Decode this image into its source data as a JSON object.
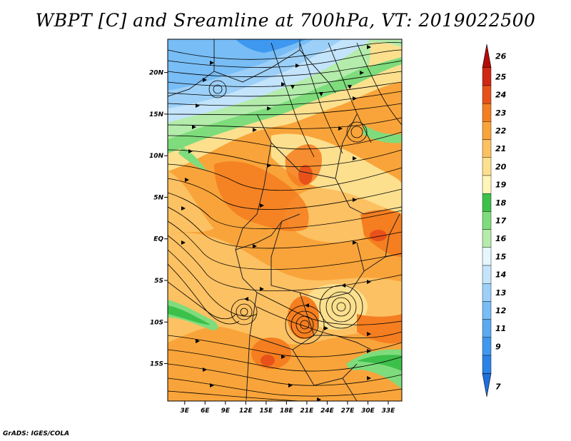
{
  "title": "WBPT [C] and Sreamline at 700hPa, VT: 2019022500",
  "credit": "GrADS: IGES/COLA",
  "map": {
    "variable": "Wet-bulb potential temperature",
    "units": "C",
    "level": "700hPa",
    "valid_time": "2019022500",
    "lat_labels": [
      "20N",
      "15N",
      "10N",
      "5N",
      "EQ",
      "5S",
      "10S",
      "15S"
    ],
    "lat_values": [
      20,
      15,
      10,
      5,
      0,
      -5,
      -10,
      -15
    ],
    "lon_labels": [
      "3E",
      "6E",
      "9E",
      "12E",
      "15E",
      "18E",
      "21E",
      "24E",
      "27E",
      "30E",
      "33E"
    ],
    "lon_values": [
      3,
      6,
      9,
      12,
      15,
      18,
      21,
      24,
      27,
      30,
      33
    ],
    "lon_range": [
      0.5,
      35
    ],
    "lat_range": [
      -19.5,
      24
    ]
  },
  "colorbar": {
    "labels": [
      "7",
      "9",
      "11",
      "12",
      "13",
      "14",
      "15",
      "16",
      "17",
      "18",
      "19",
      "20",
      "21",
      "22",
      "23",
      "24",
      "25",
      "26"
    ],
    "colors": [
      "#1e6fdc",
      "#2b83e8",
      "#3f98f0",
      "#5aaaf0",
      "#78bdf5",
      "#9dd0f8",
      "#c3e4fb",
      "#e6f6ff",
      "#b4ecab",
      "#7fdc7c",
      "#3cc04a",
      "#fff5b8",
      "#fde08e",
      "#fcc162",
      "#f9a43a",
      "#f57e20",
      "#e8521a",
      "#d12813",
      "#b30a0a"
    ]
  }
}
